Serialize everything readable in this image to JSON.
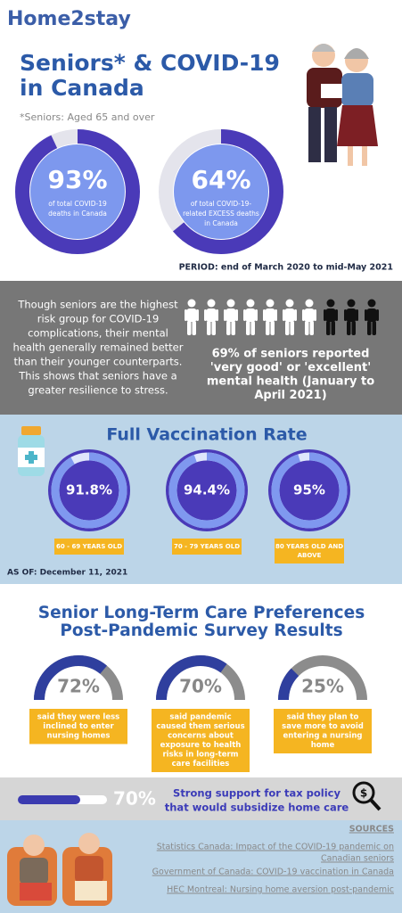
{
  "header": {
    "logo": "Home2stay",
    "title": [
      "Seniors* & COVID-19",
      "in Canada"
    ],
    "note": "*Seniors: Aged 65 and over"
  },
  "deaths": {
    "stats": [
      {
        "value": 93,
        "label": "93%",
        "caption": [
          "of total COVID-19",
          "deaths in Canada"
        ]
      },
      {
        "value": 64,
        "label": "64%",
        "caption": [
          "of total COVID-19-",
          "related EXCESS deaths",
          "in Canada"
        ]
      }
    ],
    "period": "PERIOD: end of March 2020 to mid-May 2021"
  },
  "mental_health": {
    "text": [
      "Though seniors are the highest",
      "risk group for COVID-19",
      "complications, their mental",
      "health generally remained better",
      "than their younger counterparts.",
      "This shows that seniors have a",
      "greater resilience to stress."
    ],
    "stat": [
      "69% of seniors reported",
      "'very good' or 'excellent'",
      "mental health (January to",
      "April 2021)"
    ]
  },
  "vaccination": {
    "title": "Full Vaccination Rate",
    "rates": [
      {
        "value": 91.8,
        "label": "91.8%",
        "group": [
          "60 - 69 YEARS OLD"
        ]
      },
      {
        "value": 94.4,
        "label": "94.4%",
        "group": [
          "70 - 79 YEARS OLD"
        ]
      },
      {
        "value": 95,
        "label": "95%",
        "group": [
          "80 YEARS OLD AND",
          "ABOVE"
        ]
      }
    ],
    "as_of": "AS OF: December 11, 2021"
  },
  "survey": {
    "title": [
      "Senior Long-Term Care Preferences",
      "Post-Pandemic Survey Results"
    ],
    "items": [
      {
        "value": 72,
        "label": "72%",
        "caption": [
          "said they were less",
          "inclined to enter",
          "nursing homes"
        ]
      },
      {
        "value": 70,
        "label": "70%",
        "caption": [
          "said pandemic",
          "caused them serious",
          "concerns about",
          "exposure to health",
          "risks in long-term",
          "care facilities"
        ]
      },
      {
        "value": 25,
        "label": "25%",
        "caption": [
          "said they plan to",
          "save more to avoid",
          "entering a nursing",
          "home"
        ]
      }
    ]
  },
  "tax_policy": {
    "value": 70,
    "label": "70%",
    "text": [
      "Strong support for tax policy",
      "that would subsidize home care"
    ]
  },
  "sources": {
    "heading": "SOURCES",
    "items": [
      [
        "Statistics Canada: Impact of the COVID-19 pandemic on",
        "Canadian seniors"
      ],
      [
        "Government of Canada: COVID-19 vaccination in Canada"
      ],
      [
        "HEC Montreal: Nursing home aversion post-pandemic"
      ]
    ]
  }
}
